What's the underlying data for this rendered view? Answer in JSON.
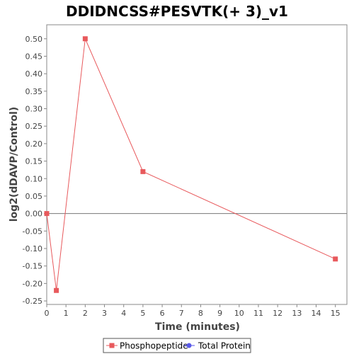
{
  "chart_data": {
    "type": "line",
    "title": "DDIDNCSS#PESVTK(+ 3)_v1",
    "xlabel": "Time (minutes)",
    "ylabel": "log2(dDAVP/Control)",
    "xlim": [
      0,
      15.6
    ],
    "ylim": [
      -0.26,
      0.54
    ],
    "xticks": [
      0,
      1,
      2,
      3,
      4,
      5,
      6,
      7,
      8,
      9,
      10,
      11,
      12,
      13,
      14,
      15
    ],
    "yticks": [
      -0.25,
      -0.2,
      -0.15,
      -0.1,
      -0.05,
      0.0,
      0.05,
      0.1,
      0.15,
      0.2,
      0.25,
      0.3,
      0.35,
      0.4,
      0.45,
      0.5
    ],
    "ytick_labels": [
      "-0.25",
      "-0.20",
      "-0.15",
      "-0.10",
      "-0.05",
      "0.00",
      "0.05",
      "0.10",
      "0.15",
      "0.20",
      "0.25",
      "0.30",
      "0.35",
      "0.40",
      "0.45",
      "0.50"
    ],
    "zero_line": true,
    "grid": false,
    "legend_position": "bottom",
    "series": [
      {
        "name": "Phosphopeptide",
        "color": "#e8595c",
        "marker": "square",
        "x": [
          0,
          0.5,
          2,
          5,
          15
        ],
        "y": [
          0.0,
          -0.22,
          0.5,
          0.12,
          -0.13
        ]
      },
      {
        "name": "Total Protein",
        "color": "#5a5ae8",
        "marker": "circle",
        "x": [],
        "y": []
      }
    ]
  }
}
